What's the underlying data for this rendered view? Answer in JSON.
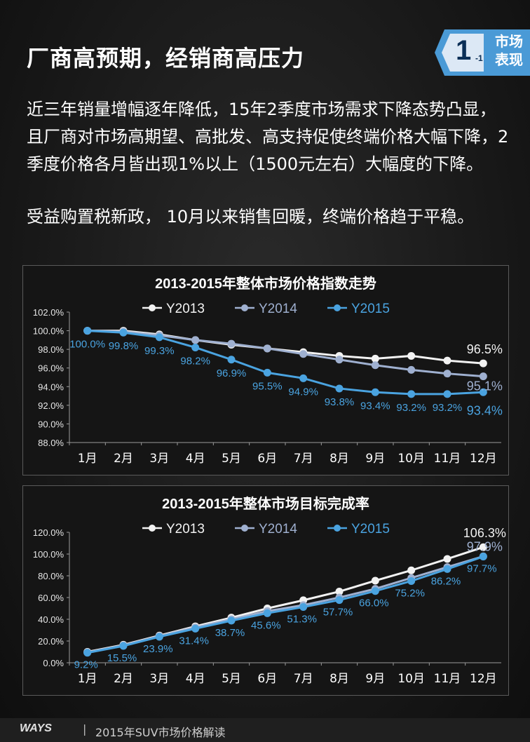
{
  "header": {
    "title": "厂商高预期，经销商高压力",
    "badge_number": "1",
    "badge_sub": "-1",
    "badge_text_line1": "市场",
    "badge_text_line2": "表现"
  },
  "body": {
    "paragraph1": "近三年销量增幅逐年降低，15年2季度市场需求下降态势凸显，且厂商对市场高期望、高批发、高支持促使终端价格大幅下降，2季度价格各月皆出现1%以上（1500元左右）大幅度的下降。",
    "paragraph2": "受益购置税新政， 10月以来销售回暖，终端价格趋于平稳。"
  },
  "footer": {
    "logo": "WAYS",
    "separator": "|",
    "text": "2015年SUV市场价格解读"
  },
  "colors": {
    "y2013": "#f2f2f2",
    "y2014": "#9fb0d0",
    "y2015": "#4aa3e0",
    "badge": "#4a9ad6"
  },
  "chart_data": [
    {
      "type": "line",
      "title": "2013-2015年整体市场价格指数走势",
      "categories": [
        "1月",
        "2月",
        "3月",
        "4月",
        "5月",
        "6月",
        "7月",
        "8月",
        "9月",
        "10月",
        "11月",
        "12月"
      ],
      "ylim": [
        88.0,
        102.0
      ],
      "yticks": [
        "88.0%",
        "90.0%",
        "92.0%",
        "94.0%",
        "96.0%",
        "98.0%",
        "100.0%",
        "102.0%"
      ],
      "grid": false,
      "legend": "top",
      "series": [
        {
          "name": "Y2013",
          "values": [
            100.0,
            100.0,
            99.6,
            99.0,
            98.5,
            98.1,
            97.7,
            97.3,
            97.0,
            97.3,
            96.8,
            96.5
          ]
        },
        {
          "name": "Y2014",
          "values": [
            100.0,
            99.9,
            99.5,
            99.0,
            98.6,
            98.1,
            97.5,
            96.9,
            96.3,
            95.8,
            95.4,
            95.1
          ]
        },
        {
          "name": "Y2015",
          "values": [
            100.0,
            99.8,
            99.3,
            98.2,
            96.9,
            95.5,
            94.9,
            93.8,
            93.4,
            93.2,
            93.2,
            93.4
          ]
        }
      ],
      "data_labels": {
        "Y2015": [
          "100.0%",
          "99.8%",
          "99.3%",
          "98.2%",
          "96.9%",
          "95.5%",
          "94.9%",
          "93.8%",
          "93.4%",
          "93.2%",
          "93.2%"
        ],
        "end_Y2013": "96.5%",
        "end_Y2014": "95.1%",
        "end_Y2015": "93.4%"
      }
    },
    {
      "type": "line",
      "title": "2013-2015年整体市场目标完成率",
      "categories": [
        "1月",
        "2月",
        "3月",
        "4月",
        "5月",
        "6月",
        "7月",
        "8月",
        "9月",
        "10月",
        "11月",
        "12月"
      ],
      "ylim": [
        0.0,
        120.0
      ],
      "yticks": [
        "0.0%",
        "20.0%",
        "40.0%",
        "60.0%",
        "80.0%",
        "100.0%",
        "120.0%"
      ],
      "grid": false,
      "legend": "top",
      "series": [
        {
          "name": "Y2013",
          "values": [
            10.0,
            16.5,
            25.0,
            33.5,
            41.5,
            50.0,
            57.5,
            65.5,
            75.5,
            85.0,
            95.5,
            106.3
          ]
        },
        {
          "name": "Y2014",
          "values": [
            9.5,
            16.0,
            24.5,
            32.5,
            40.0,
            47.5,
            53.0,
            60.0,
            68.0,
            78.0,
            88.0,
            97.9
          ]
        },
        {
          "name": "Y2015",
          "values": [
            9.2,
            15.5,
            23.9,
            31.4,
            38.7,
            45.6,
            51.3,
            57.7,
            66.0,
            75.2,
            86.2,
            97.7
          ]
        }
      ],
      "data_labels": {
        "Y2015": [
          "9.2%",
          "15.5%",
          "23.9%",
          "31.4%",
          "38.7%",
          "45.6%",
          "51.3%",
          "57.7%",
          "66.0%",
          "75.2%",
          "86.2%",
          "97.7%"
        ],
        "end_Y2013": "106.3%",
        "end_Y2014": "97.9%"
      }
    }
  ]
}
